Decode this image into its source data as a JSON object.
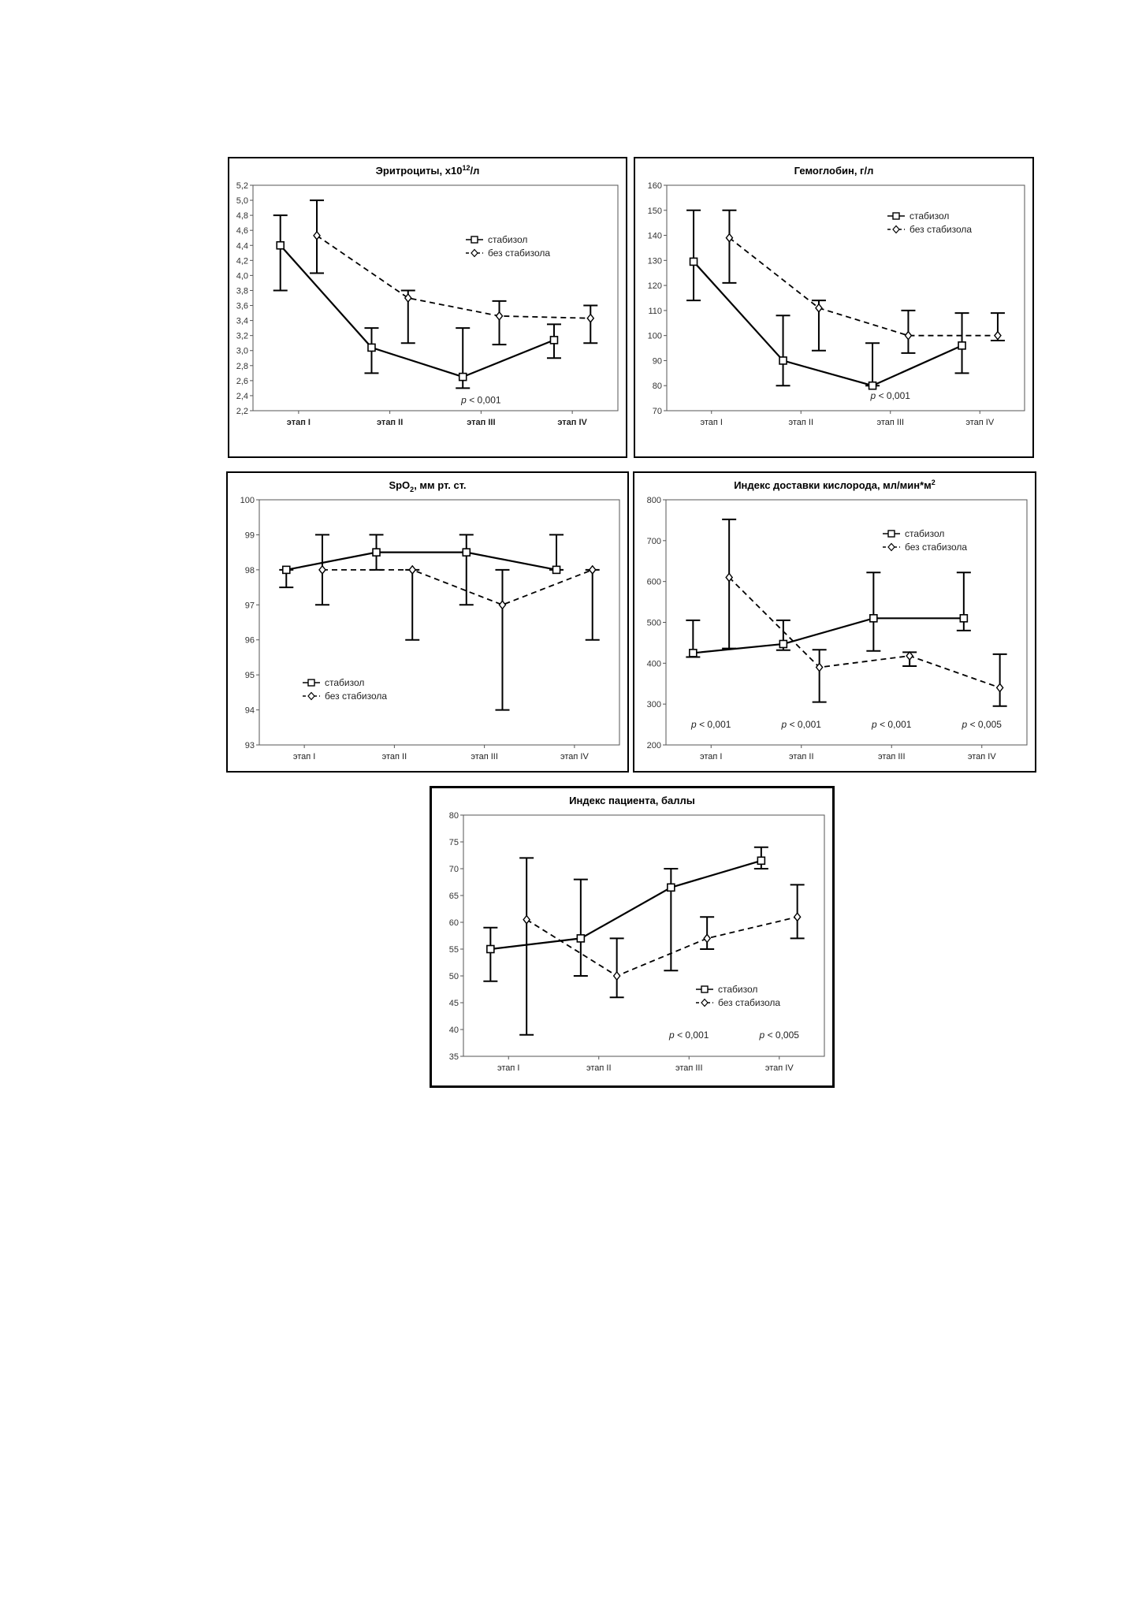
{
  "chart_data": [
    {
      "type": "line",
      "title_main": "Эритроциты, х10",
      "title_sup": "12",
      "title_tail": "/л",
      "categories": [
        "этап I",
        "этап II",
        "этап III",
        "этап IV"
      ],
      "bold_categories": true,
      "ylim": [
        2.2,
        5.2
      ],
      "ystep": 0.2,
      "ydecimals": 1,
      "comma_decimal": true,
      "series": [
        {
          "name": "стабизол",
          "marker": "square",
          "dashed": false,
          "values": [
            4.4,
            3.04,
            2.65,
            3.14
          ],
          "err_low": [
            3.8,
            2.7,
            2.5,
            2.9
          ],
          "err_high": [
            4.8,
            3.3,
            3.3,
            3.35
          ]
        },
        {
          "name": "без стабизола",
          "marker": "diamond",
          "dashed": true,
          "values": [
            4.53,
            3.7,
            3.46,
            3.43
          ],
          "err_low": [
            4.03,
            3.1,
            3.08,
            3.1
          ],
          "err_high": [
            5.0,
            3.8,
            3.66,
            3.6
          ]
        }
      ],
      "legend": "top-right",
      "annotations": [
        {
          "text": "p < 0,001",
          "at": "этап III",
          "y": 2.34
        }
      ]
    },
    {
      "type": "line",
      "title_main": "Гемоглобин, г/л",
      "title_sup": "",
      "title_tail": "",
      "categories": [
        "этап I",
        "этап II",
        "этап III",
        "этап IV"
      ],
      "bold_categories": false,
      "ylim": [
        70,
        160
      ],
      "ystep": 10,
      "ydecimals": 0,
      "comma_decimal": false,
      "series": [
        {
          "name": "стабизол",
          "marker": "square",
          "dashed": false,
          "values": [
            129.5,
            90,
            80,
            96
          ],
          "err_low": [
            114,
            80,
            80,
            85
          ],
          "err_high": [
            150,
            108,
            97,
            109
          ]
        },
        {
          "name": "без стабизола",
          "marker": "diamond",
          "dashed": true,
          "values": [
            139,
            111,
            100,
            100
          ],
          "err_low": [
            121,
            94,
            93,
            98
          ],
          "err_high": [
            150,
            114,
            110,
            109
          ]
        }
      ],
      "legend": "top-right",
      "annotations": [
        {
          "text": "p < 0,001",
          "at": "этап III",
          "y": 76
        }
      ]
    },
    {
      "type": "line",
      "title_main": "SpO",
      "title_sub": "2",
      "title_tail": ", мм рт. ст.",
      "categories": [
        "этап I",
        "этап II",
        "этап III",
        "этап IV"
      ],
      "bold_categories": false,
      "ylim": [
        93,
        100
      ],
      "ystep": 1,
      "ydecimals": 0,
      "comma_decimal": false,
      "series": [
        {
          "name": "стабизол",
          "marker": "square",
          "dashed": false,
          "values": [
            98,
            98.5,
            98.5,
            98
          ],
          "err_low": [
            97.5,
            98,
            97,
            98
          ],
          "err_high": [
            98,
            99,
            99,
            99
          ]
        },
        {
          "name": "без стабизола",
          "marker": "diamond",
          "dashed": true,
          "values": [
            98,
            98,
            97,
            98
          ],
          "err_low": [
            97,
            96,
            94,
            96
          ],
          "err_high": [
            99,
            98,
            98,
            98
          ]
        }
      ],
      "legend": "bottom-left",
      "annotations": []
    },
    {
      "type": "line",
      "title_main": "Индекс доставки кислорода, мл/мин*м",
      "title_sup": "2",
      "title_tail": "",
      "categories": [
        "этап I",
        "этап II",
        "этап III",
        "этап IV"
      ],
      "bold_categories": false,
      "ylim": [
        200,
        800
      ],
      "ystep": 100,
      "ydecimals": 0,
      "comma_decimal": false,
      "series": [
        {
          "name": "стабизол",
          "marker": "square",
          "dashed": false,
          "values": [
            425,
            447,
            510,
            510
          ],
          "err_low": [
            415,
            432,
            430,
            480
          ],
          "err_high": [
            505,
            505,
            622,
            622
          ]
        },
        {
          "name": "без стабизола",
          "marker": "diamond",
          "dashed": true,
          "values": [
            610,
            390,
            418,
            340
          ],
          "err_low": [
            436,
            305,
            393,
            295
          ],
          "err_high": [
            752,
            433,
            427,
            422
          ]
        }
      ],
      "legend": "top-right",
      "annotations": [
        {
          "text": "p < 0,001",
          "at": "этап I",
          "y": 250
        },
        {
          "text": "p < 0,001",
          "at": "этап II",
          "y": 250
        },
        {
          "text": "p < 0,001",
          "at": "этап III",
          "y": 250
        },
        {
          "text": "p < 0,005",
          "at": "этап IV",
          "y": 250
        }
      ]
    },
    {
      "type": "line",
      "title_main": "Индекс пациента, баллы",
      "title_sup": "",
      "title_tail": "",
      "categories": [
        "этап I",
        "этап II",
        "этап III",
        "этап IV"
      ],
      "bold_categories": false,
      "ylim": [
        35,
        80
      ],
      "ystep": 5,
      "ydecimals": 0,
      "comma_decimal": false,
      "series": [
        {
          "name": "стабизол",
          "marker": "square",
          "dashed": false,
          "values": [
            55,
            57,
            66.5,
            71.5
          ],
          "err_low": [
            49,
            50,
            51,
            70
          ],
          "err_high": [
            59,
            68,
            70,
            74
          ]
        },
        {
          "name": "без стабизола",
          "marker": "diamond",
          "dashed": true,
          "values": [
            60.5,
            50,
            57,
            61
          ],
          "err_low": [
            39,
            46,
            55,
            57
          ],
          "err_high": [
            72,
            57,
            61,
            67
          ]
        }
      ],
      "legend": "bottom-right",
      "annotations": [
        {
          "text": "p < 0,001",
          "at": "этап III",
          "y": 39
        },
        {
          "text": "p < 0,005",
          "at": "этап IV",
          "y": 39
        }
      ]
    }
  ]
}
